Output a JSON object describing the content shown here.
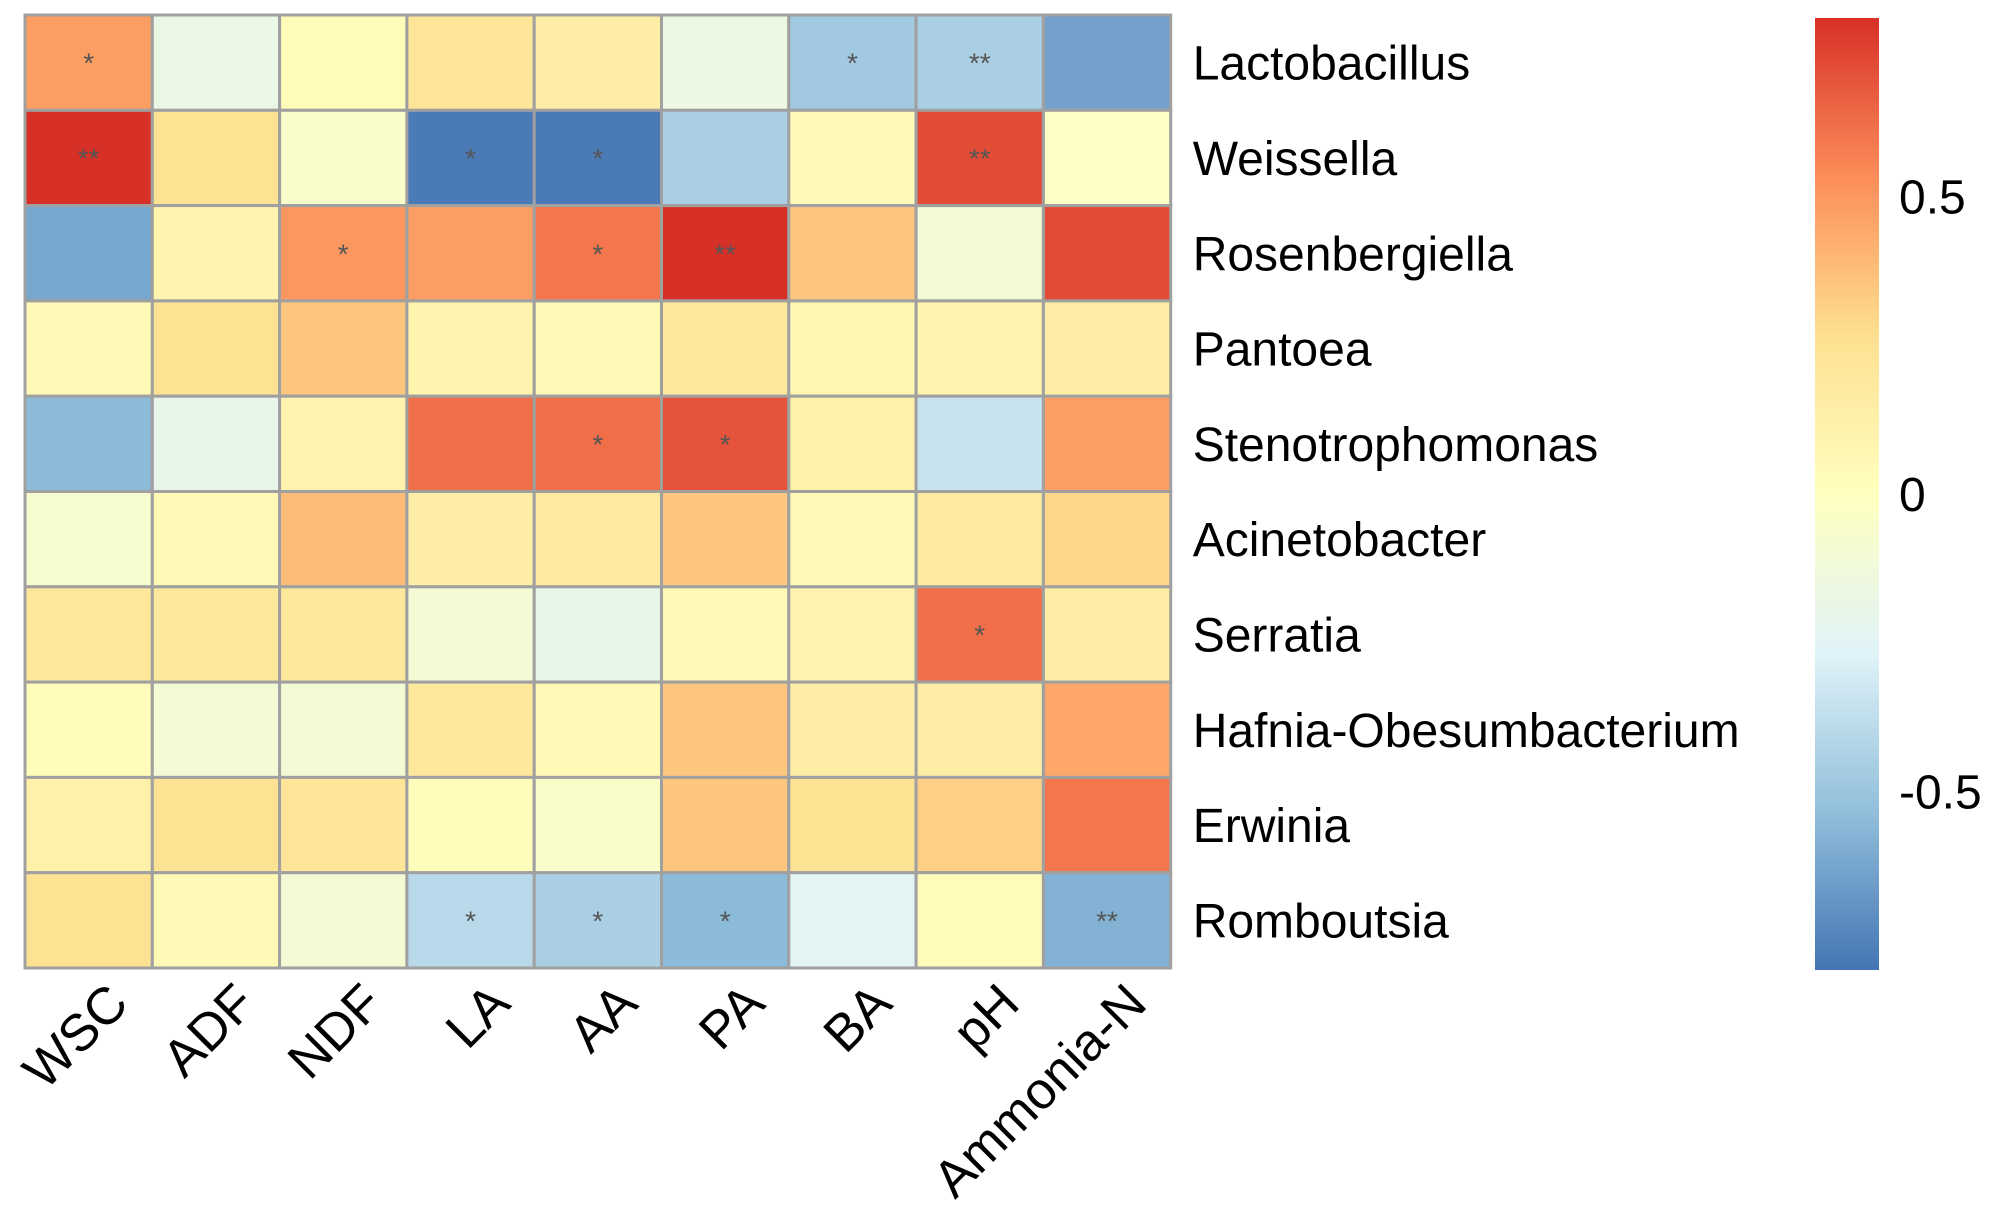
{
  "chart_data": {
    "type": "heatmap",
    "title": "",
    "columns": [
      "WSC",
      "ADF",
      "NDF",
      "LA",
      "AA",
      "PA",
      "BA",
      "pH",
      "Ammonia-N"
    ],
    "rows": [
      "Lactobacillus",
      "Weissella",
      "Rosenbergiella",
      "Pantoea",
      "Stenotrophomonas",
      "Acinetobacter",
      "Serratia",
      "Hafnia-Obesumbacterium",
      "Erwinia",
      "Romboutsia"
    ],
    "values": [
      [
        0.48,
        -0.18,
        0.03,
        0.22,
        0.15,
        -0.16,
        -0.48,
        -0.45,
        -0.64
      ],
      [
        0.82,
        0.25,
        -0.05,
        -0.78,
        -0.78,
        -0.45,
        0.04,
        0.72,
        -0.03
      ],
      [
        -0.62,
        0.1,
        0.5,
        0.48,
        0.6,
        0.83,
        0.35,
        -0.1,
        0.72
      ],
      [
        0.05,
        0.25,
        0.35,
        0.1,
        0.05,
        0.2,
        0.08,
        0.1,
        0.15
      ],
      [
        -0.55,
        -0.2,
        0.1,
        0.62,
        0.62,
        0.7,
        0.12,
        -0.35,
        0.48
      ],
      [
        -0.07,
        0.05,
        0.38,
        0.15,
        0.18,
        0.35,
        0.05,
        0.18,
        0.3
      ],
      [
        0.2,
        0.2,
        0.2,
        -0.1,
        -0.2,
        0.05,
        0.1,
        0.62,
        0.15
      ],
      [
        0.03,
        -0.1,
        -0.1,
        0.2,
        0.05,
        0.35,
        0.15,
        0.15,
        0.45
      ],
      [
        0.12,
        0.25,
        0.22,
        0.02,
        -0.05,
        0.35,
        0.25,
        0.32,
        0.6
      ],
      [
        0.25,
        0.05,
        -0.1,
        -0.4,
        -0.45,
        -0.55,
        -0.25,
        0.03,
        -0.58
      ]
    ],
    "significance": [
      [
        "*",
        "",
        "",
        "",
        "",
        "",
        "*",
        "**",
        ""
      ],
      [
        "**",
        "",
        "",
        "*",
        "*",
        "",
        "",
        "**",
        ""
      ],
      [
        "",
        "",
        "*",
        "",
        "*",
        "**",
        "",
        "",
        ""
      ],
      [
        "",
        "",
        "",
        "",
        "",
        "",
        "",
        "",
        ""
      ],
      [
        "",
        "",
        "",
        "",
        "*",
        "*",
        "",
        "",
        ""
      ],
      [
        "",
        "",
        "",
        "",
        "",
        "",
        "",
        "",
        ""
      ],
      [
        "",
        "",
        "",
        "",
        "",
        "",
        "",
        "*",
        ""
      ],
      [
        "",
        "",
        "",
        "",
        "",
        "",
        "",
        "",
        ""
      ],
      [
        "",
        "",
        "",
        "",
        "",
        "",
        "",
        "",
        ""
      ],
      [
        "",
        "",
        "",
        "*",
        "*",
        "*",
        "",
        "",
        "**"
      ]
    ],
    "color_scale": {
      "range": [
        -0.8,
        0.8
      ],
      "ticks": [
        {
          "value": 0.5,
          "label": "0.5"
        },
        {
          "value": 0,
          "label": "0"
        },
        {
          "value": -0.5,
          "label": "-0.5"
        }
      ],
      "stops": [
        "#4575b4",
        "#91bfdb",
        "#e0f3f8",
        "#ffffbf",
        "#fee090",
        "#fc8d59",
        "#d73027"
      ]
    },
    "grid_color": "#a0a0a0",
    "legend_position": "right"
  }
}
